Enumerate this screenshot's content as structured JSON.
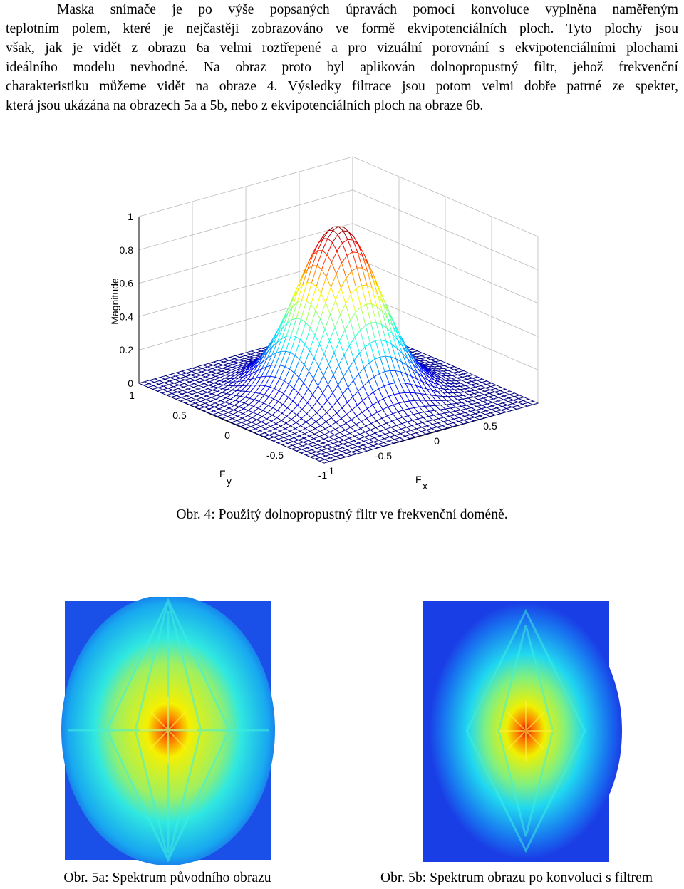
{
  "paragraph": {
    "lines": [
      "Maska snímače je po výše popsaných úpravách pomocí konvoluce vyplněna naměřeným",
      "teplotním polem, které je nejčastěji zobrazováno ve formě ekvipotenciálních ploch. Tyto plochy jsou",
      "však, jak je vidět z obrazu 6a velmi roztřepené a pro vizuální porovnání s ekvipotenciálními plochami",
      "ideálního modelu nevhodné. Na obraz proto byl aplikován dolnopropustný filtr, jehož frekvenční",
      "charakteristiku můžeme vidět na obraze 4. Výsledky filtrace jsou potom velmi dobře patrné ze spekter,",
      "která jsou ukázána na obrazech 5a a 5b, nebo z ekvipotenciálních ploch na obraze 6b."
    ]
  },
  "figure4": {
    "z_label": "Magnitude",
    "z_ticks": [
      "0",
      "0.2",
      "0.4",
      "0.6",
      "0.8",
      "1"
    ],
    "fy_label": "F",
    "fy_sub": "y",
    "fy_ticks": [
      "1",
      "0.5",
      "0",
      "-0.5",
      "-1"
    ],
    "fx_label": "F",
    "fx_sub": "x",
    "fx_ticks": [
      "-1",
      "-0.5",
      "0",
      "0.5"
    ],
    "caption": "Obr. 4: Použitý dolnopropustný filtr ve frekvenční doméně."
  },
  "figure5a": {
    "caption": "Obr. 5a: Spektrum původního obrazu"
  },
  "figure5b": {
    "caption": "Obr. 5b: Spektrum obrazu po konvoluci s filtrem"
  }
}
